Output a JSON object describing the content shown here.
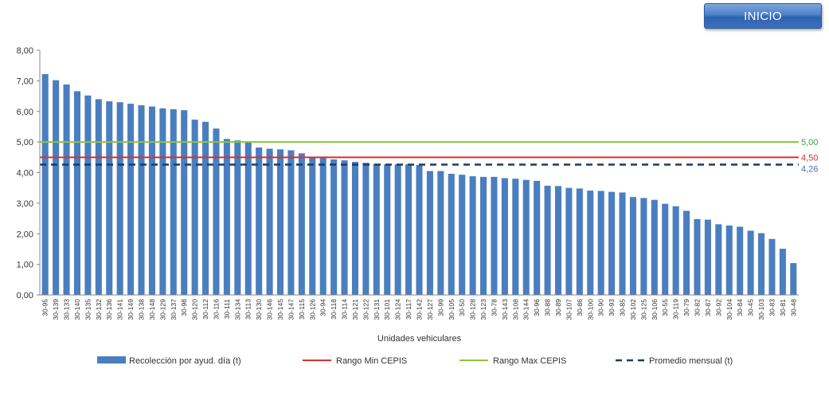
{
  "header": {
    "inicio_label": "INICIO"
  },
  "chart_data": {
    "type": "bar",
    "xlabel": "Unidades vehiculares",
    "ylabel": "",
    "ylim": [
      0,
      8
    ],
    "yticks": [
      "0,00",
      "1,00",
      "2,00",
      "3,00",
      "4,00",
      "5,00",
      "6,00",
      "7,00",
      "8,00"
    ],
    "legend_position": "bottom",
    "categories": [
      "30-95",
      "30-139",
      "30-133",
      "30-140",
      "30-135",
      "30-132",
      "30-136",
      "30-141",
      "30-149",
      "30-138",
      "30-148",
      "30-129",
      "30-137",
      "30-98",
      "30-120",
      "30-112",
      "30-116",
      "30-111",
      "30-134",
      "30-113",
      "30-130",
      "30-146",
      "30-145",
      "30-147",
      "30-115",
      "30-126",
      "30-94",
      "30-118",
      "30-114",
      "30-121",
      "30-122",
      "30-131",
      "30-101",
      "30-124",
      "30-117",
      "30-142",
      "30-127",
      "30-99",
      "30-105",
      "30-50",
      "30-128",
      "30-123",
      "30-78",
      "30-143",
      "30-108",
      "30-144",
      "30-96",
      "30-88",
      "30-89",
      "30-107",
      "30-86",
      "30-100",
      "30-90",
      "30-93",
      "30-85",
      "30-102",
      "30-125",
      "30-106",
      "30-55",
      "30-119",
      "30-79",
      "30-82",
      "30-87",
      "30-92",
      "30-104",
      "30-84",
      "30-45",
      "30-103",
      "30-83",
      "30-81",
      "30-48"
    ],
    "series": [
      {
        "name": "Recolección por ayud. día (t)",
        "color": "#4a7ebf",
        "values": [
          7.22,
          7.02,
          6.88,
          6.66,
          6.52,
          6.4,
          6.33,
          6.3,
          6.25,
          6.2,
          6.16,
          6.1,
          6.07,
          6.04,
          5.73,
          5.66,
          5.44,
          5.1,
          5.05,
          5.0,
          4.82,
          4.78,
          4.76,
          4.73,
          4.63,
          4.52,
          4.52,
          4.43,
          4.4,
          4.35,
          4.32,
          4.28,
          4.27,
          4.27,
          4.27,
          4.25,
          4.05,
          4.05,
          3.96,
          3.93,
          3.88,
          3.86,
          3.86,
          3.82,
          3.8,
          3.76,
          3.73,
          3.57,
          3.56,
          3.5,
          3.48,
          3.41,
          3.4,
          3.37,
          3.35,
          3.2,
          3.17,
          3.11,
          2.98,
          2.9,
          2.75,
          2.48,
          2.46,
          2.31,
          2.27,
          2.23,
          2.1,
          2.02,
          1.83,
          1.51,
          1.04
        ]
      }
    ],
    "reference_lines": [
      {
        "name": "Rango Min CEPIS",
        "value": 4.5,
        "label": "4,50",
        "color": "#d9302c",
        "style": "solid"
      },
      {
        "name": "Rango Max CEPIS",
        "value": 5.0,
        "label": "5,00",
        "color": "#8cc43c",
        "style": "solid",
        "label_color": "#3aa13a"
      },
      {
        "name": "Promedio mensual (t)",
        "value": 4.26,
        "label": "4,26",
        "color": "#1f3864",
        "style": "dashed",
        "label_color": "#4a6fb0"
      }
    ]
  }
}
